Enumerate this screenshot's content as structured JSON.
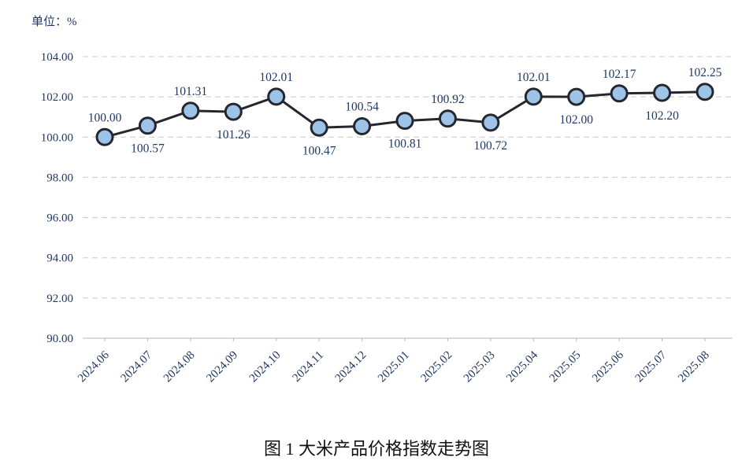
{
  "unit_label": "单位：%",
  "title": "图 1 大米产品价格指数走势图",
  "chart_data": {
    "type": "line",
    "title": "图 1 大米产品价格指数走势图",
    "unit": "单位：%",
    "categories": [
      "2024.06",
      "2024.07",
      "2024.08",
      "2024.09",
      "2024.10",
      "2024.11",
      "2024.12",
      "2025.01",
      "2025.02",
      "2025.03",
      "2025.04",
      "2025.05",
      "2025.06",
      "2025.07",
      "2025.08"
    ],
    "values": [
      100.0,
      100.57,
      101.31,
      101.26,
      102.01,
      100.47,
      100.54,
      100.81,
      100.92,
      100.72,
      102.01,
      102.0,
      102.17,
      102.2,
      102.25
    ],
    "label_positions": [
      "above",
      "below",
      "above",
      "below",
      "above",
      "below",
      "above",
      "below",
      "above",
      "below",
      "above",
      "below",
      "above",
      "below",
      "above"
    ],
    "ylim": [
      90,
      104
    ],
    "ytick_step": 2,
    "grid": "dashed-horizontal",
    "legend": "none",
    "colors": {
      "line": "#26262e",
      "marker_fill": "#9dc3e6",
      "grid": "#c8c8c8",
      "axis": "#b8b8b8",
      "text": "#1f3864"
    }
  }
}
